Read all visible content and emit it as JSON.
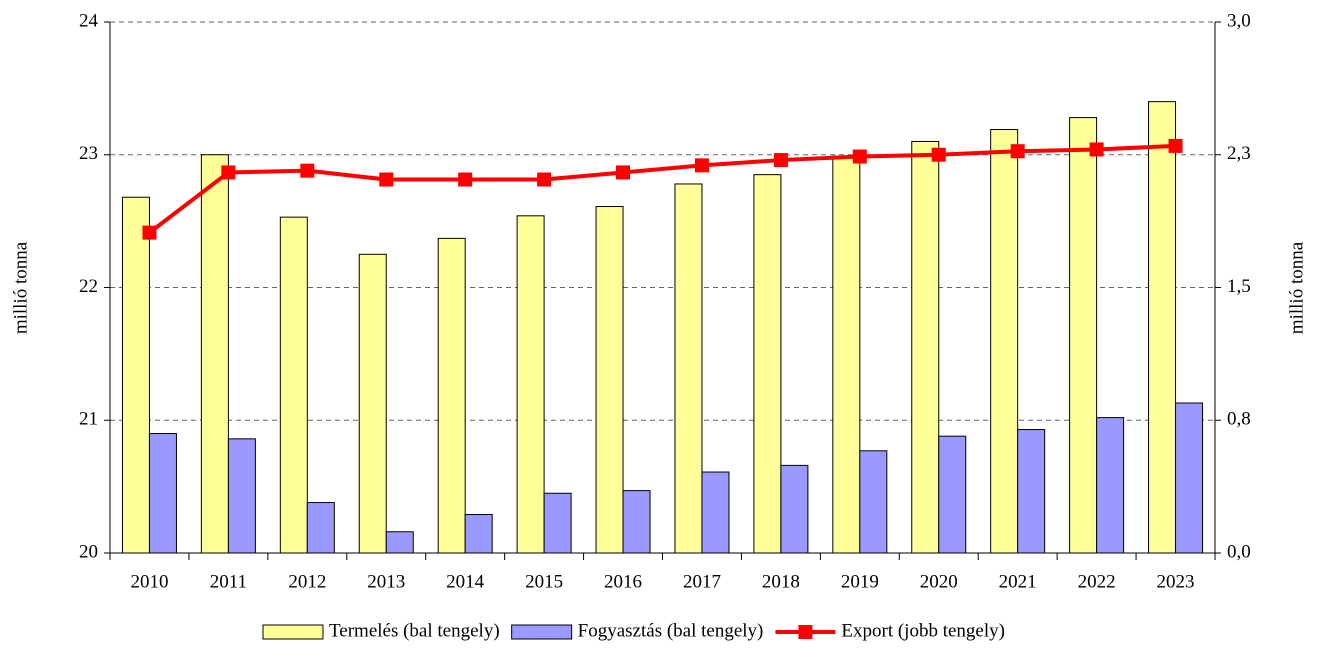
{
  "chart_data": {
    "type": "bar-line",
    "categories": [
      "2010",
      "2011",
      "2012",
      "2013",
      "2014",
      "2015",
      "2016",
      "2017",
      "2018",
      "2019",
      "2020",
      "2021",
      "2022",
      "2023"
    ],
    "series": [
      {
        "name": "Termelés (bal tengely)",
        "color": "#ffff99",
        "type": "bar",
        "values": [
          22.68,
          23.0,
          22.53,
          22.25,
          22.37,
          22.54,
          22.61,
          22.78,
          22.85,
          22.99,
          23.1,
          23.19,
          23.28,
          23.4
        ]
      },
      {
        "name": "Fogyasztás (bal tengely)",
        "color": "#9999ff",
        "type": "bar",
        "values": [
          20.9,
          20.86,
          20.38,
          20.16,
          20.29,
          20.45,
          20.47,
          20.61,
          20.66,
          20.77,
          20.88,
          20.93,
          21.02,
          21.13
        ]
      },
      {
        "name": "Export (jobb tengely)",
        "color": "#ff0000",
        "type": "line",
        "axis": "y2",
        "values": [
          1.81,
          2.15,
          2.16,
          2.11,
          2.11,
          2.11,
          2.15,
          2.19,
          2.22,
          2.24,
          2.25,
          2.27,
          2.28,
          2.3
        ]
      }
    ],
    "ylabel": "millió tonna",
    "y2label": "millió tonna",
    "ylim": [
      20,
      24
    ],
    "yticks": [
      20,
      21,
      22,
      23,
      24
    ],
    "y2lim": [
      0,
      3
    ],
    "y2ticks": [
      {
        "value": 0,
        "label": "0,0"
      },
      {
        "value": 0.75,
        "label": "0,8"
      },
      {
        "value": 1.5,
        "label": "1,5"
      },
      {
        "value": 2.25,
        "label": "2,3"
      },
      {
        "value": 3,
        "label": "3,0"
      }
    ],
    "grid": true,
    "legend": "bottom"
  }
}
